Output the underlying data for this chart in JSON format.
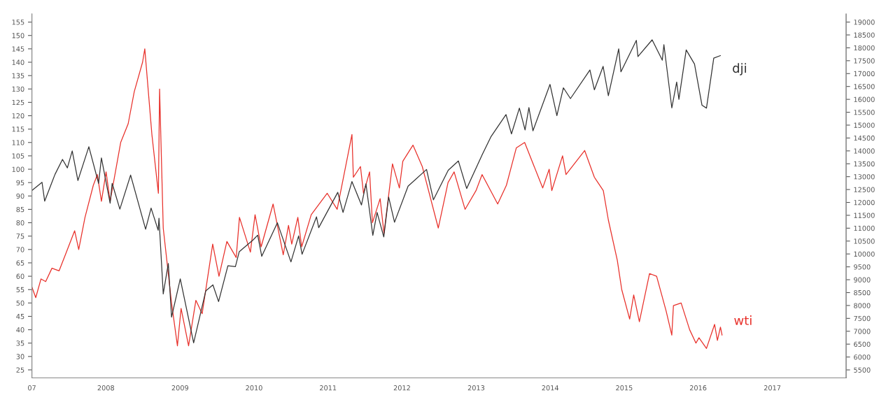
{
  "chart_data": {
    "type": "line",
    "grid": false,
    "legend": false,
    "marker": "none",
    "line_style": "solid",
    "xlim": [
      "2007-01-01",
      "2017-12-31"
    ],
    "xticks": [
      {
        "value": "2007-01-01",
        "label": "07"
      },
      {
        "value": "2008-01-01",
        "label": "2008"
      },
      {
        "value": "2009-01-01",
        "label": "2009"
      },
      {
        "value": "2010-01-01",
        "label": "2010"
      },
      {
        "value": "2011-01-01",
        "label": "2011"
      },
      {
        "value": "2012-01-01",
        "label": "2012"
      },
      {
        "value": "2013-01-01",
        "label": "2013"
      },
      {
        "value": "2014-01-01",
        "label": "2014"
      },
      {
        "value": "2015-01-01",
        "label": "2015"
      },
      {
        "value": "2016-01-01",
        "label": "2016"
      },
      {
        "value": "2017-01-01",
        "label": "2017"
      }
    ],
    "ylim": [
      22,
      158
    ],
    "yticks": [
      25,
      30,
      35,
      40,
      45,
      50,
      55,
      60,
      65,
      70,
      75,
      80,
      85,
      90,
      95,
      100,
      105,
      110,
      115,
      120,
      125,
      130,
      135,
      140,
      145,
      150,
      155
    ],
    "y2lim": [
      5190,
      19310
    ],
    "y2ticks": [
      5500,
      6000,
      6500,
      7000,
      7500,
      8000,
      8500,
      9000,
      9500,
      10000,
      10500,
      11000,
      11500,
      12000,
      12500,
      13000,
      13500,
      14000,
      14500,
      15000,
      15500,
      16000,
      16500,
      17000,
      17500,
      18000,
      18500,
      19000
    ],
    "series": [
      {
        "name": "wti",
        "color": "#e8302a",
        "axis": "y",
        "x": [
          "2007-01-01",
          "2007-01-20",
          "2007-02-15",
          "2007-03-10",
          "2007-04-10",
          "2007-05-15",
          "2007-06-15",
          "2007-07-31",
          "2007-08-20",
          "2007-09-20",
          "2007-10-31",
          "2007-11-20",
          "2007-12-10",
          "2008-01-02",
          "2008-01-22",
          "2008-03-14",
          "2008-04-20",
          "2008-05-20",
          "2008-06-30",
          "2008-07-11",
          "2008-08-15",
          "2008-09-16",
          "2008-09-22",
          "2008-10-10",
          "2008-11-20",
          "2008-12-19",
          "2009-01-06",
          "2009-02-12",
          "2009-03-20",
          "2009-04-20",
          "2009-06-11",
          "2009-07-12",
          "2009-08-20",
          "2009-10-05",
          "2009-10-21",
          "2009-12-14",
          "2010-01-06",
          "2010-02-05",
          "2010-04-05",
          "2010-05-25",
          "2010-06-20",
          "2010-07-06",
          "2010-08-05",
          "2010-08-24",
          "2010-10-10",
          "2010-12-28",
          "2011-02-15",
          "2011-04-29",
          "2011-05-06",
          "2011-06-10",
          "2011-06-25",
          "2011-07-25",
          "2011-08-08",
          "2011-09-15",
          "2011-10-04",
          "2011-11-15",
          "2011-12-19",
          "2012-01-05",
          "2012-02-24",
          "2012-04-10",
          "2012-06-28",
          "2012-08-15",
          "2012-09-14",
          "2012-11-07",
          "2012-12-31",
          "2013-01-30",
          "2013-04-17",
          "2013-05-30",
          "2013-07-18",
          "2013-08-28",
          "2013-11-25",
          "2013-12-27",
          "2014-01-09",
          "2014-03-03",
          "2014-03-20",
          "2014-06-20",
          "2014-08-07",
          "2014-09-20",
          "2014-10-15",
          "2014-11-28",
          "2014-12-20",
          "2015-01-28",
          "2015-02-17",
          "2015-03-17",
          "2015-05-06",
          "2015-06-10",
          "2015-07-27",
          "2015-08-24",
          "2015-09-01",
          "2015-10-09",
          "2015-11-20",
          "2015-12-21",
          "2016-01-05",
          "2016-02-11",
          "2016-03-22",
          "2016-04-05",
          "2016-04-20",
          "2016-04-28"
        ],
        "values": [
          56,
          52,
          59,
          58,
          63,
          62,
          68,
          77,
          70,
          82,
          94,
          98,
          88,
          99,
          88,
          110,
          117,
          129,
          140,
          145,
          113,
          91,
          130,
          78,
          50,
          34,
          48,
          34,
          51,
          46,
          72,
          60,
          73,
          67,
          82,
          69,
          83,
          71,
          87,
          68,
          79,
          72,
          82,
          71,
          83,
          91,
          85,
          113,
          97,
          101,
          91,
          99,
          80,
          89,
          76,
          102,
          93,
          103,
          109,
          101,
          78,
          95,
          99,
          85,
          92,
          98,
          87,
          94,
          108,
          110,
          93,
          100,
          92,
          105,
          98,
          107,
          97,
          92,
          81,
          66,
          55,
          44,
          53,
          43,
          61,
          60,
          47,
          38,
          49,
          50,
          40,
          35,
          37,
          33,
          42,
          36,
          41,
          38
        ]
      },
      {
        "name": "dji",
        "color": "#333333",
        "axis": "y2",
        "x": [
          "2007-01-01",
          "2007-02-20",
          "2007-03-05",
          "2007-04-25",
          "2007-06-01",
          "2007-06-25",
          "2007-07-19",
          "2007-08-16",
          "2007-10-09",
          "2007-11-26",
          "2007-12-10",
          "2008-01-22",
          "2008-02-01",
          "2008-03-10",
          "2008-05-02",
          "2008-07-15",
          "2008-08-11",
          "2008-09-15",
          "2008-09-19",
          "2008-10-10",
          "2008-11-04",
          "2008-11-20",
          "2009-01-02",
          "2009-03-09",
          "2009-05-08",
          "2009-06-12",
          "2009-07-10",
          "2009-08-25",
          "2009-10-01",
          "2009-10-20",
          "2009-12-28",
          "2010-01-19",
          "2010-02-08",
          "2010-04-26",
          "2010-07-02",
          "2010-08-09",
          "2010-08-26",
          "2010-11-05",
          "2010-11-16",
          "2011-02-18",
          "2011-03-16",
          "2011-04-29",
          "2011-06-15",
          "2011-07-07",
          "2011-08-10",
          "2011-08-31",
          "2011-10-03",
          "2011-10-27",
          "2011-11-25",
          "2012-01-31",
          "2012-05-01",
          "2012-06-04",
          "2012-08-16",
          "2012-10-05",
          "2012-11-15",
          "2013-01-31",
          "2013-03-14",
          "2013-05-28",
          "2013-06-24",
          "2013-08-02",
          "2013-08-30",
          "2013-09-18",
          "2013-10-08",
          "2013-12-31",
          "2014-02-03",
          "2014-03-07",
          "2014-04-11",
          "2014-07-16",
          "2014-08-07",
          "2014-09-19",
          "2014-10-15",
          "2014-12-05",
          "2014-12-16",
          "2015-03-02",
          "2015-03-10",
          "2015-05-19",
          "2015-07-08",
          "2015-07-16",
          "2015-08-24",
          "2015-09-17",
          "2015-09-28",
          "2015-11-03",
          "2015-12-14",
          "2016-01-20",
          "2016-02-11",
          "2016-03-18",
          "2016-04-20"
        ],
        "values": [
          12460,
          12780,
          12050,
          13090,
          13670,
          13340,
          14000,
          12850,
          14160,
          12740,
          13730,
          11970,
          12740,
          11740,
          13060,
          10960,
          11780,
          10920,
          11390,
          8450,
          9630,
          7550,
          9030,
          6550,
          8570,
          8800,
          8150,
          9540,
          9510,
          10090,
          10550,
          10730,
          9910,
          11210,
          9690,
          10700,
          9990,
          11440,
          11020,
          12390,
          11610,
          12810,
          11900,
          12720,
          10720,
          11610,
          10660,
          12210,
          11230,
          12630,
          13280,
          12100,
          13250,
          13610,
          12540,
          13860,
          14540,
          15410,
          14660,
          15660,
          14810,
          15680,
          14780,
          16580,
          15370,
          16450,
          16030,
          17140,
          16370,
          17280,
          16140,
          17960,
          17070,
          18290,
          17660,
          18310,
          17520,
          18120,
          15670,
          16670,
          16000,
          17920,
          17370,
          15770,
          15660,
          17600,
          17700
        ]
      }
    ]
  }
}
